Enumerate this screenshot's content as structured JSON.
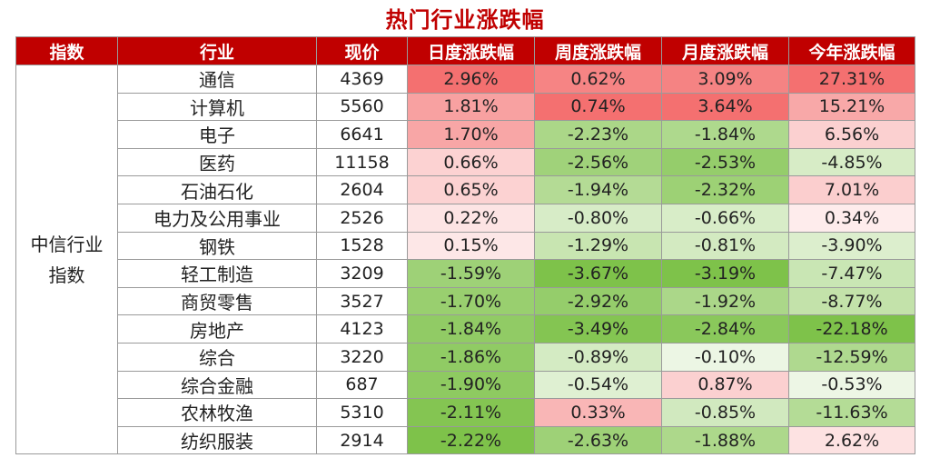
{
  "title": "热门行业涨跌幅",
  "headers": [
    "指数",
    "行业",
    "现价",
    "日度涨跌幅",
    "周度涨跌幅",
    "月度涨跌幅",
    "今年涨跌幅"
  ],
  "index_label": "中信行业\n指数",
  "colors": {
    "header_bg": "#c00000",
    "title": "#c00000",
    "positive": "#f47070",
    "negative": "#7ec24a"
  },
  "rows": [
    {
      "industry": "通信",
      "price": "4369",
      "day": "2.96%",
      "week": "0.62%",
      "month": "3.09%",
      "ytd": "27.31%"
    },
    {
      "industry": "计算机",
      "price": "5560",
      "day": "1.81%",
      "week": "0.74%",
      "month": "3.64%",
      "ytd": "15.21%"
    },
    {
      "industry": "电子",
      "price": "6641",
      "day": "1.70%",
      "week": "-2.23%",
      "month": "-1.84%",
      "ytd": "6.56%"
    },
    {
      "industry": "医药",
      "price": "11158",
      "day": "0.66%",
      "week": "-2.56%",
      "month": "-2.53%",
      "ytd": "-4.85%"
    },
    {
      "industry": "石油石化",
      "price": "2604",
      "day": "0.65%",
      "week": "-1.94%",
      "month": "-2.32%",
      "ytd": "7.01%"
    },
    {
      "industry": "电力及公用事业",
      "price": "2526",
      "day": "0.22%",
      "week": "-0.80%",
      "month": "-0.66%",
      "ytd": "0.34%"
    },
    {
      "industry": "钢铁",
      "price": "1528",
      "day": "0.15%",
      "week": "-1.29%",
      "month": "-0.81%",
      "ytd": "-3.90%"
    },
    {
      "industry": "轻工制造",
      "price": "3209",
      "day": "-1.59%",
      "week": "-3.67%",
      "month": "-3.19%",
      "ytd": "-7.47%"
    },
    {
      "industry": "商贸零售",
      "price": "3527",
      "day": "-1.70%",
      "week": "-2.92%",
      "month": "-1.92%",
      "ytd": "-8.77%"
    },
    {
      "industry": "房地产",
      "price": "4123",
      "day": "-1.84%",
      "week": "-3.49%",
      "month": "-2.84%",
      "ytd": "-22.18%"
    },
    {
      "industry": "综合",
      "price": "3220",
      "day": "-1.86%",
      "week": "-0.89%",
      "month": "-0.10%",
      "ytd": "-12.59%"
    },
    {
      "industry": "综合金融",
      "price": "687",
      "day": "-1.90%",
      "week": "-0.54%",
      "month": "0.87%",
      "ytd": "-0.53%"
    },
    {
      "industry": "农林牧渔",
      "price": "5310",
      "day": "-2.11%",
      "week": "0.33%",
      "month": "-0.85%",
      "ytd": "-11.63%"
    },
    {
      "industry": "纺织服装",
      "price": "2914",
      "day": "-2.22%",
      "week": "-2.63%",
      "month": "-1.88%",
      "ytd": "2.62%"
    }
  ]
}
